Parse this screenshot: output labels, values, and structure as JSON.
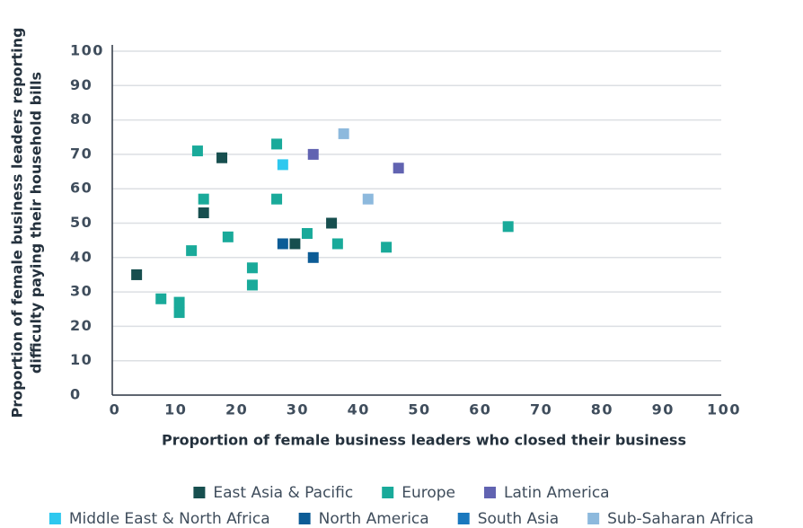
{
  "chart_data": {
    "type": "scatter",
    "xlabel": "Proportion of female business leaders who closed their business",
    "ylabel": [
      "Proportion of female business leaders reporting",
      "difficulty paying their household bills"
    ],
    "xlim": [
      0,
      100
    ],
    "xticks": [
      0,
      10,
      20,
      30,
      40,
      50,
      60,
      70,
      80,
      90,
      100
    ],
    "ylim": [
      0,
      100
    ],
    "yticks": [
      0,
      10,
      20,
      30,
      40,
      50,
      60,
      70,
      80,
      90,
      100
    ],
    "grid": true,
    "legend": "bottom",
    "series": [
      {
        "name": "East Asia & Pacific",
        "color": "#174f4f",
        "x": [
          4,
          18,
          15,
          36,
          30
        ],
        "values": [
          35,
          69,
          53,
          50,
          44
        ]
      },
      {
        "name": "Europe",
        "color": "#19aa9a",
        "x": [
          14,
          27,
          15,
          27,
          19,
          13,
          23,
          23,
          8,
          11,
          11,
          32,
          37,
          45,
          65
        ],
        "values": [
          71,
          73,
          57,
          57,
          46,
          42,
          37,
          32,
          28,
          27,
          24,
          47,
          44,
          43,
          49
        ]
      },
      {
        "name": "Latin America",
        "color": "#6163b1",
        "x": [
          33,
          47
        ],
        "values": [
          70,
          66
        ]
      },
      {
        "name": "Middle East & North Africa",
        "color": "#2ec8ef",
        "x": [
          28
        ],
        "values": [
          67
        ]
      },
      {
        "name": "North America",
        "color": "#0c5c96",
        "x": [
          28,
          33
        ],
        "values": [
          44,
          40
        ]
      },
      {
        "name": "South Asia",
        "color": "#1a78be",
        "x": [],
        "values": []
      },
      {
        "name": "Sub-Saharan Africa",
        "color": "#8db9dd",
        "x": [
          38,
          42
        ],
        "values": [
          76,
          57
        ]
      }
    ]
  }
}
